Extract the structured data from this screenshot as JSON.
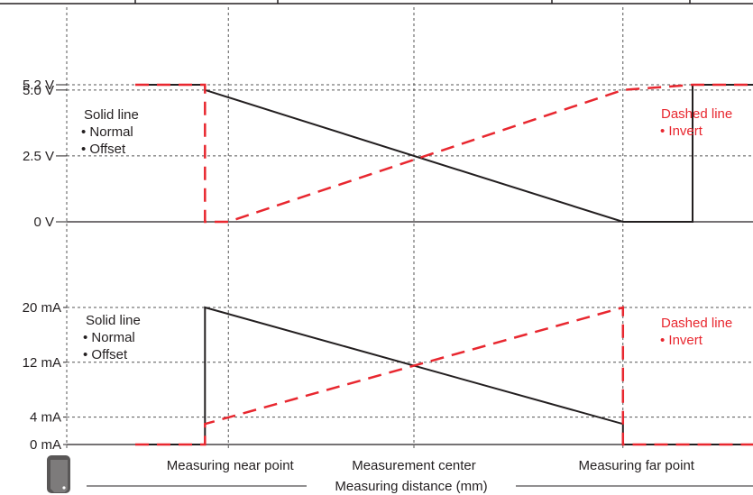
{
  "colors": {
    "solid": "#231f20",
    "dashed": "#e8272f",
    "grid": "#555555",
    "sensor_body": "#595757"
  },
  "xlabel": "Measuring distance (mm)",
  "x_tick_labels": [
    "Measuring near point",
    "Measurement center",
    "Measuring far point"
  ],
  "chart_data": [
    {
      "type": "line",
      "title": "",
      "xlabel": "Measuring distance (mm)",
      "ylabel": "",
      "x_markers": [
        "Measuring near point",
        "Measurement center",
        "Measuring far point"
      ],
      "y_ticks": [
        {
          "value": 0,
          "label": "0 V"
        },
        {
          "value": 2.5,
          "label": "2.5 V"
        },
        {
          "value": 5.0,
          "label": "5.0 V"
        },
        {
          "value": 5.2,
          "label": "5.2 V"
        }
      ],
      "ylim": [
        0,
        5.2
      ],
      "series": [
        {
          "name": "Solid line",
          "style": "solid",
          "points": [
            [
              -1.2,
              5.2
            ],
            [
              -0.9,
              5.2
            ],
            [
              -0.9,
              5.0
            ],
            [
              0.9,
              0
            ],
            [
              1.2,
              0
            ],
            [
              1.2,
              5.2
            ],
            [
              1.5,
              5.2
            ]
          ]
        },
        {
          "name": "Dashed line",
          "style": "dashed",
          "points": [
            [
              -1.2,
              5.2
            ],
            [
              -0.9,
              5.2
            ],
            [
              -0.9,
              0
            ],
            [
              -0.8,
              0
            ],
            [
              0.9,
              5.0
            ],
            [
              1.2,
              5.2
            ],
            [
              1.5,
              5.2
            ]
          ]
        }
      ],
      "legend_solid": {
        "title": "Solid line",
        "items": [
          "• Normal",
          "• Offset"
        ]
      },
      "legend_dashed": {
        "title": "Dashed line",
        "items": [
          "• Invert"
        ]
      }
    },
    {
      "type": "line",
      "title": "",
      "xlabel": "Measuring distance (mm)",
      "ylabel": "",
      "x_markers": [
        "Measuring near point",
        "Measurement center",
        "Measuring far point"
      ],
      "y_ticks": [
        {
          "value": 0,
          "label": "0 mA"
        },
        {
          "value": 4,
          "label": "4 mA"
        },
        {
          "value": 12,
          "label": "12 mA"
        },
        {
          "value": 20,
          "label": "20 mA"
        }
      ],
      "ylim": [
        0,
        20
      ],
      "series": [
        {
          "name": "Solid line",
          "style": "solid",
          "points": [
            [
              -1.2,
              0
            ],
            [
              -0.9,
              0
            ],
            [
              -0.9,
              20
            ],
            [
              0.9,
              3
            ],
            [
              0.9,
              0
            ],
            [
              1.5,
              0
            ]
          ]
        },
        {
          "name": "Dashed line",
          "style": "dashed",
          "points": [
            [
              -1.2,
              0
            ],
            [
              -0.9,
              0
            ],
            [
              -0.9,
              3
            ],
            [
              0.9,
              20
            ],
            [
              0.9,
              0
            ],
            [
              1.5,
              0
            ]
          ]
        }
      ],
      "legend_solid": {
        "title": "Solid line",
        "items": [
          "• Normal",
          "• Offset"
        ]
      },
      "legend_dashed": {
        "title": "Dashed line",
        "items": [
          "• Invert"
        ]
      }
    }
  ]
}
